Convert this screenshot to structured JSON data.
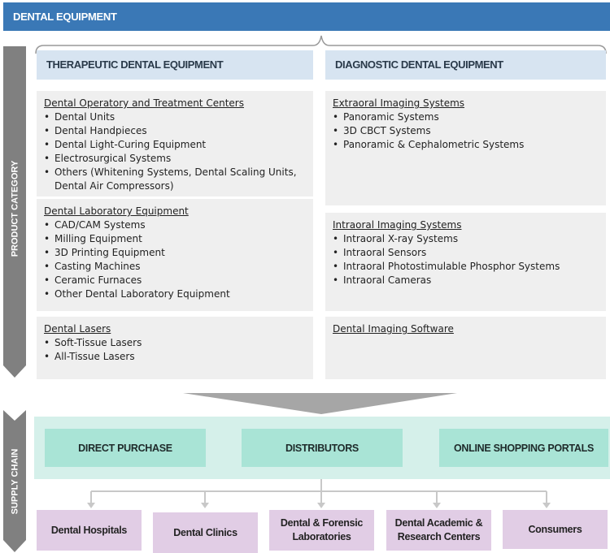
{
  "header": {
    "title": "DENTAL EQUIPMENT"
  },
  "side_labels": {
    "product": "PRODUCT CATEGORY",
    "supply": "SUPPLY CHAIN"
  },
  "categories": [
    {
      "label": "THERAPEUTIC DENTAL EQUIPMENT",
      "groups": [
        {
          "title": "Dental Operatory and Treatment Centers",
          "items": [
            "Dental Units",
            "Dental Handpieces",
            "Dental Light-Curing Equipment",
            "Electrosurgical Systems",
            "Others (Whitening Systems, Dental Scaling Units, Dental Air Compressors)"
          ]
        },
        {
          "title": "Dental Laboratory Equipment",
          "items": [
            "CAD/CAM Systems",
            "Milling Equipment",
            "3D Printing Equipment",
            "Casting Machines",
            "Ceramic Furnaces",
            "Other Dental Laboratory Equipment"
          ]
        },
        {
          "title": "Dental Lasers",
          "items": [
            "Soft-Tissue Lasers",
            "All-Tissue Lasers"
          ]
        }
      ]
    },
    {
      "label": "DIAGNOSTIC DENTAL EQUIPMENT",
      "groups": [
        {
          "title": "Extraoral Imaging Systems",
          "items": [
            "Panoramic Systems",
            "3D CBCT Systems",
            "Panoramic & Cephalometric Systems"
          ]
        },
        {
          "title": "Intraoral Imaging Systems",
          "items": [
            "Intraoral X-ray Systems",
            "Intraoral Sensors",
            "Intraoral Photostimulable Phosphor Systems",
            "Intraoral Cameras"
          ]
        },
        {
          "title": "Dental Imaging Software",
          "items": []
        }
      ]
    }
  ],
  "channels": [
    "DIRECT PURCHASE",
    "DISTRIBUTORS",
    "ONLINE SHOPPING PORTALS"
  ],
  "end_users": [
    "Dental Hospitals",
    "Dental Clinics",
    "Dental & Forensic Laboratories",
    "Dental Academic & Research Centers",
    "Consumers"
  ],
  "colors": {
    "header": "#3a78b6",
    "category": "#d7e4f1",
    "box": "#efefef",
    "channel_bg": "#d5f0ea",
    "channel": "#a9e4d6",
    "end_user": "#e1cde5",
    "arrow": "#808080"
  }
}
